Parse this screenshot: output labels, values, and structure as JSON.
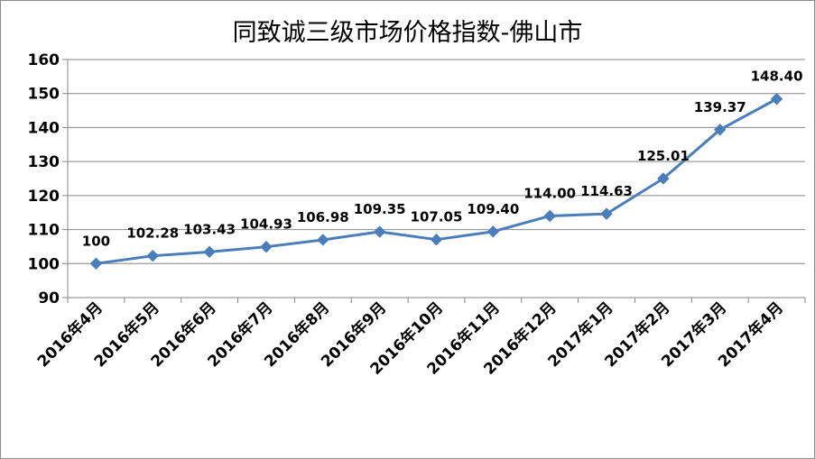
{
  "chart_data": {
    "type": "line",
    "title": "同致诚三级市场价格指数-佛山市",
    "xlabel": "",
    "ylabel": "",
    "ylim": [
      90,
      160
    ],
    "yticks": [
      90,
      100,
      110,
      120,
      130,
      140,
      150,
      160
    ],
    "grid": true,
    "legend": "none",
    "categories": [
      "2016年4月",
      "2016年5月",
      "2016年6月",
      "2016年7月",
      "2016年8月",
      "2016年9月",
      "2016年10月",
      "2016年11月",
      "2016年12月",
      "2017年1月",
      "2017年2月",
      "2017年3月",
      "2017年4月"
    ],
    "series": [
      {
        "values": [
          100,
          102.28,
          103.43,
          104.93,
          106.98,
          109.35,
          107.05,
          109.4,
          114.0,
          114.63,
          125.01,
          139.37,
          148.4
        ],
        "labels": [
          "100",
          "102.28",
          "103.43",
          "104.93",
          "106.98",
          "109.35",
          "107.05",
          "109.40",
          "114.00",
          "114.63",
          "125.01",
          "139.37",
          "148.40"
        ],
        "color": "#4a7ebb"
      }
    ]
  }
}
